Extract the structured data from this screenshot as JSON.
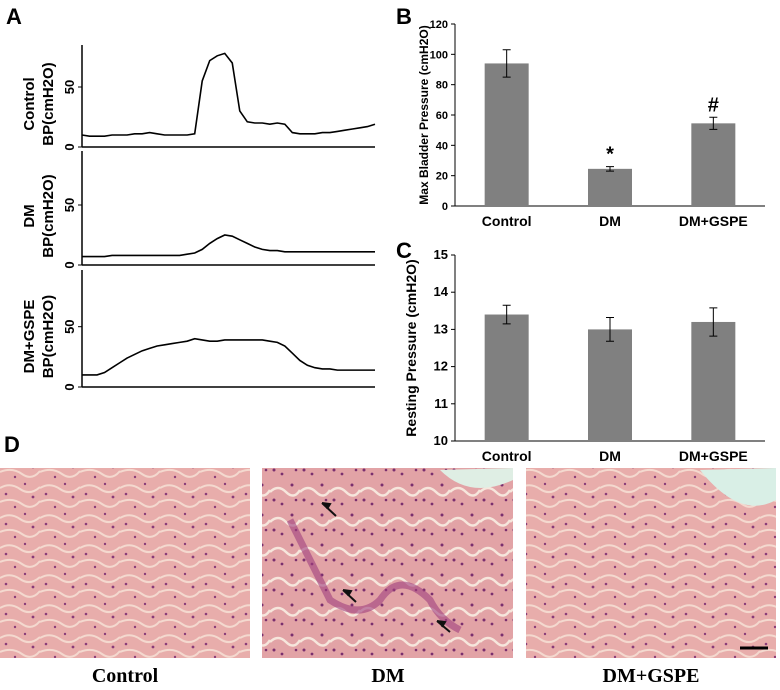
{
  "chart_data": [
    {
      "type": "line",
      "panel": "A",
      "group": "Control",
      "ylabel": "BP(cmH2O)",
      "ylim": [
        0,
        85
      ],
      "yticks": [
        0,
        50
      ],
      "color": "#000000",
      "values": [
        10,
        9,
        9,
        9,
        10,
        10,
        10,
        11,
        11,
        12,
        11,
        10,
        10,
        10,
        10,
        11,
        55,
        72,
        76,
        78,
        70,
        30,
        21,
        20,
        20,
        19,
        20,
        19,
        12,
        11,
        11,
        11,
        12,
        12,
        13,
        14,
        15,
        16,
        17,
        19
      ]
    },
    {
      "type": "line",
      "group": "DM",
      "ylabel": "BP(cmH2O)",
      "ylim": [
        0,
        95
      ],
      "yticks": [
        0,
        50
      ],
      "color": "#000000",
      "values": [
        7,
        7,
        7,
        7,
        8,
        8,
        8,
        8,
        8,
        8,
        8,
        8,
        8,
        8,
        9,
        10,
        13,
        18,
        22,
        25,
        24,
        21,
        18,
        15,
        13,
        12,
        12,
        11,
        11,
        11,
        11,
        11,
        11,
        11,
        11,
        11,
        11,
        11,
        11,
        11
      ]
    },
    {
      "type": "line",
      "group": "DM+GSPE",
      "ylabel": "BP(cmH2O)",
      "ylim": [
        0,
        97
      ],
      "yticks": [
        0,
        50
      ],
      "color": "#000000",
      "values": [
        10,
        10,
        10,
        12,
        16,
        20,
        24,
        27,
        30,
        32,
        34,
        35,
        36,
        37,
        38,
        40,
        39,
        38,
        38,
        39,
        39,
        39,
        39,
        39,
        39,
        38,
        37,
        34,
        28,
        22,
        18,
        16,
        15,
        15,
        14,
        14,
        14,
        14,
        14,
        14
      ]
    },
    {
      "type": "bar",
      "panel": "B",
      "ylabel": "Max Bladder Pressure (cmH2O)",
      "categories": [
        "Control",
        "DM",
        "DM+GSPE"
      ],
      "values": [
        94,
        24.5,
        54.5
      ],
      "errors": [
        9,
        1.5,
        4
      ],
      "annotations": [
        null,
        "*",
        "#"
      ],
      "color": "#808080",
      "ylim": [
        0,
        120
      ],
      "yticks": [
        0,
        20,
        40,
        60,
        80,
        100,
        120
      ]
    },
    {
      "type": "bar",
      "panel": "C",
      "ylabel": "Resting Pressure (cmH2O)",
      "categories": [
        "Control",
        "DM",
        "DM+GSPE"
      ],
      "values": [
        13.4,
        13.0,
        13.2
      ],
      "errors": [
        0.25,
        0.32,
        0.38
      ],
      "color": "#808080",
      "ylim": [
        10,
        15
      ],
      "yticks": [
        10,
        11,
        12,
        13,
        14,
        15
      ]
    }
  ],
  "panel_d": {
    "label": "D",
    "captions": [
      "Control",
      "DM",
      "DM+GSPE"
    ]
  }
}
